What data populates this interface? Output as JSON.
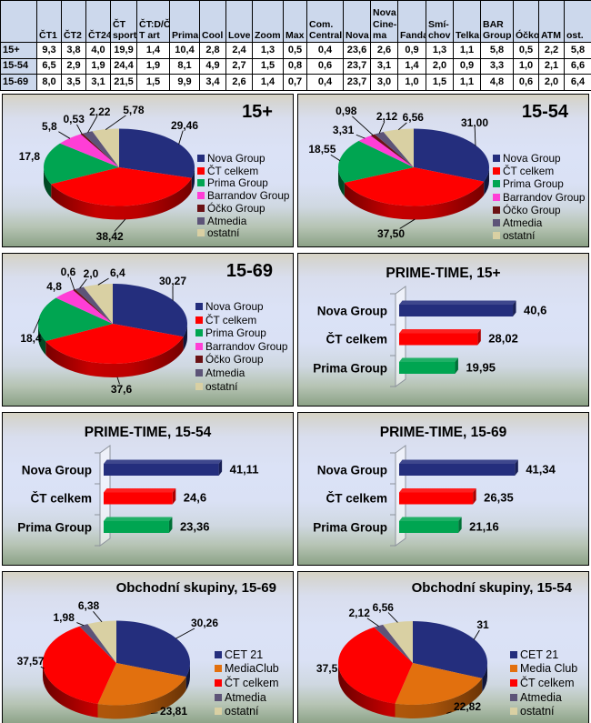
{
  "table": {
    "corner": "",
    "columns": [
      "ČT1",
      "ČT2",
      "ČT24",
      "ČT\nsport",
      "ČT:D/Č\nT art",
      "Prima",
      "Cool",
      "Love",
      "Zoom",
      "Max",
      "Com.\nCentral",
      "Nova",
      "Nova\nCine-\nma",
      "Fanda",
      "Smí-\nchov",
      "Telka",
      "BAR\nGroup",
      "Óčko",
      "ATM",
      "ost."
    ],
    "rows": [
      {
        "label": "15+",
        "values": [
          "9,3",
          "3,8",
          "4,0",
          "19,9",
          "1,4",
          "10,4",
          "2,8",
          "2,4",
          "1,3",
          "0,5",
          "0,4",
          "23,6",
          "2,6",
          "0,9",
          "1,3",
          "1,1",
          "5,8",
          "0,5",
          "2,2",
          "5,8"
        ]
      },
      {
        "label": "15-54",
        "values": [
          "6,5",
          "2,9",
          "1,9",
          "24,4",
          "1,9",
          "8,1",
          "4,9",
          "2,7",
          "1,5",
          "0,8",
          "0,6",
          "23,7",
          "3,1",
          "1,4",
          "2,0",
          "0,9",
          "3,3",
          "1,0",
          "2,1",
          "6,6"
        ]
      },
      {
        "label": "15-69",
        "values": [
          "8,0",
          "3,5",
          "3,1",
          "21,5",
          "1,5",
          "9,9",
          "3,4",
          "2,6",
          "1,4",
          "0,7",
          "0,4",
          "23,7",
          "3,0",
          "1,0",
          "1,5",
          "1,1",
          "4,8",
          "0,6",
          "2,0",
          "6,4"
        ]
      }
    ]
  },
  "palette": {
    "nova": "#242e7d",
    "ct": "#fe0000",
    "prima": "#00a551",
    "barrandov": "#ff3ed6",
    "ocko": "#6b1114",
    "atmedia": "#5d5478",
    "ostatni": "#d9d0a3",
    "mediaclub": "#e2700e"
  },
  "chart_data": [
    {
      "type": "pie",
      "title": "15+",
      "title_style": "age",
      "labels": [
        "Nova Group",
        "ČT celkem",
        "Prima Group",
        "Barrandov Group",
        "Óčko Group",
        "Atmedia",
        "ostatní"
      ],
      "values": [
        29.46,
        38.42,
        17.8,
        5.8,
        0.53,
        2.22,
        5.78
      ],
      "value_labels": [
        "29,46",
        "38,42",
        "17,8",
        "5,8",
        "0,53",
        "2,22",
        "5,78"
      ],
      "colors": [
        "#242e7d",
        "#fe0000",
        "#00a551",
        "#ff3ed6",
        "#6b1114",
        "#5d5478",
        "#d9d0a3"
      ]
    },
    {
      "type": "pie",
      "title": "15-54",
      "title_style": "age",
      "labels": [
        "Nova Group",
        "ČT celkem",
        "Prima Group",
        "Barrandov Group",
        "Óčko Group",
        "Atmedia",
        "ostatní"
      ],
      "values": [
        31.0,
        37.5,
        18.55,
        3.31,
        0.98,
        2.12,
        6.56
      ],
      "value_labels": [
        "31,00",
        "37,50",
        "18,55",
        "3,31",
        "0,98",
        "2,12",
        "6,56"
      ],
      "colors": [
        "#242e7d",
        "#fe0000",
        "#00a551",
        "#ff3ed6",
        "#6b1114",
        "#5d5478",
        "#d9d0a3"
      ]
    },
    {
      "type": "pie",
      "title": "15-69",
      "title_style": "age",
      "labels": [
        "Nova Group",
        "ČT celkem",
        "Prima Group",
        "Barrandov Group",
        "Óčko Group",
        "Atmedia",
        "ostatní"
      ],
      "values": [
        30.27,
        37.6,
        18.4,
        4.8,
        0.6,
        2.0,
        6.4
      ],
      "value_labels": [
        "30,27",
        "37,6",
        "18,4",
        "4,8",
        "0,6",
        "2,0",
        "6,4"
      ],
      "colors": [
        "#242e7d",
        "#fe0000",
        "#00a551",
        "#ff3ed6",
        "#6b1114",
        "#5d5478",
        "#d9d0a3"
      ]
    },
    {
      "type": "bar",
      "title": "PRIME-TIME, 15+",
      "title_style": "mid",
      "categories": [
        "Nova Group",
        "ČT celkem",
        "Prima Group"
      ],
      "values": [
        40.6,
        28.02,
        19.95
      ],
      "value_labels": [
        "40,6",
        "28,02",
        "19,95"
      ],
      "colors": [
        "#242e7d",
        "#fe0000",
        "#00a551"
      ]
    },
    {
      "type": "bar",
      "title": "PRIME-TIME, 15-54",
      "title_style": "mid",
      "categories": [
        "Nova Group",
        "ČT celkem",
        "Prima Group"
      ],
      "values": [
        41.11,
        24.6,
        23.36
      ],
      "value_labels": [
        "41,11",
        "24,6",
        "23,36"
      ],
      "colors": [
        "#242e7d",
        "#fe0000",
        "#00a551"
      ]
    },
    {
      "type": "bar",
      "title": "PRIME-TIME, 15-69",
      "title_style": "mid",
      "categories": [
        "Nova Group",
        "ČT celkem",
        "Prima Group"
      ],
      "values": [
        41.34,
        26.35,
        21.16
      ],
      "value_labels": [
        "41,34",
        "26,35",
        "21,16"
      ],
      "colors": [
        "#242e7d",
        "#fe0000",
        "#00a551"
      ]
    },
    {
      "type": "pie",
      "title": "Obchodní skupiny, 15-69",
      "title_style": "obch",
      "labels": [
        "CET 21",
        "MediaClub",
        "ČT celkem",
        "Atmedia",
        "ostatní"
      ],
      "values": [
        30.26,
        23.81,
        37.57,
        1.98,
        6.38
      ],
      "value_labels": [
        "30,26",
        "23,81",
        "37,57",
        "1,98",
        "6,38"
      ],
      "colors": [
        "#242e7d",
        "#e2700e",
        "#fe0000",
        "#5d5478",
        "#d9d0a3"
      ]
    },
    {
      "type": "pie",
      "title": "Obchodní skupiny, 15-54",
      "title_style": "obch",
      "labels": [
        "CET 21",
        "Media Club",
        "ČT celkem",
        "Atmedia",
        "ostatní"
      ],
      "values": [
        31.0,
        22.82,
        37.5,
        2.12,
        6.56
      ],
      "value_labels": [
        "31",
        "22,82",
        "37,5",
        "2,12",
        "6,56"
      ],
      "colors": [
        "#242e7d",
        "#e2700e",
        "#fe0000",
        "#5d5478",
        "#d9d0a3"
      ]
    }
  ]
}
